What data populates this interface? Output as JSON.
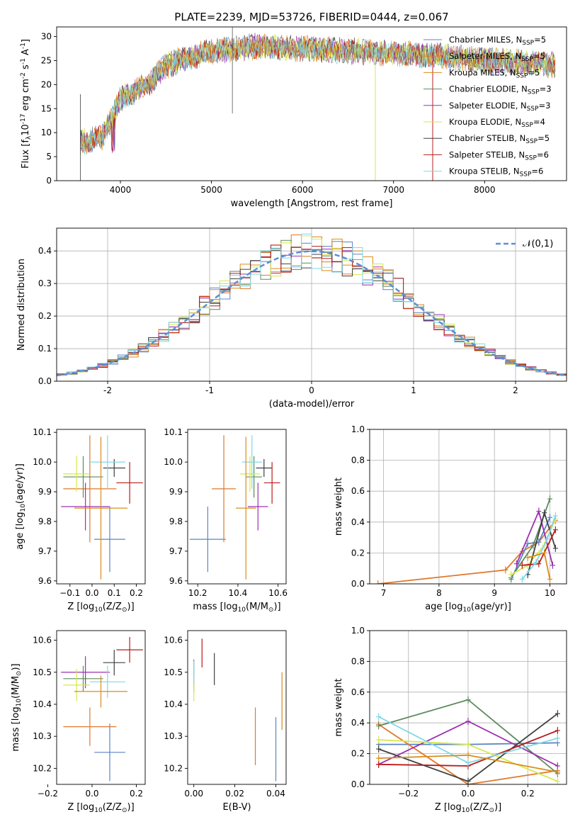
{
  "figure": {
    "title": "PLATE=2239, MJD=53726, FIBERID=0444, z=0.067"
  },
  "series": [
    {
      "name": "Chabrier MILES, N$_{SSP}$=5",
      "color": "#5b84c4"
    },
    {
      "name": "Salpeter MILES, N$_{SSP}$=5",
      "color": "#e0782b"
    },
    {
      "name": "Kroupa MILES, N$_{SSP}$=5",
      "color": "#d98c1a"
    },
    {
      "name": "Chabrier ELODIE, N$_{SSP}$=3",
      "color": "#5e8a5e"
    },
    {
      "name": "Salpeter ELODIE, N$_{SSP}$=3",
      "color": "#9b30b0"
    },
    {
      "name": "Kroupa ELODIE, N$_{SSP}$=4",
      "color": "#d6e84a"
    },
    {
      "name": "Chabrier STELIB, N$_{SSP}$=5",
      "color": "#404040"
    },
    {
      "name": "Salpeter STELIB, N$_{SSP}$=6",
      "color": "#b81c1c"
    },
    {
      "name": "Kroupa STELIB, N$_{SSP}$=6",
      "color": "#7fd8e6"
    }
  ],
  "chart_data": [
    {
      "id": "spectrum",
      "type": "line",
      "xlabel": "wavelength [Angstrom, rest frame]",
      "ylabel": "Flux [f$_\\lambda$10$^{-17}$ erg cm$^{-2}$ s$^{-1}$ A$^{-1}$]",
      "xlim": [
        3300,
        8900
      ],
      "ylim": [
        0,
        32
      ],
      "xticks": [
        4000,
        5000,
        6000,
        7000,
        8000
      ],
      "yticks": [
        0,
        5,
        10,
        15,
        20,
        25,
        30
      ],
      "legend": "top-right",
      "continuum_x": [
        3560,
        3800,
        3950,
        4000,
        4300,
        4500,
        5000,
        5500,
        6000,
        6500,
        7000,
        7500,
        8000,
        8500,
        8800
      ],
      "continuum_y": [
        8,
        9,
        15,
        17,
        20,
        24,
        27,
        28,
        27.5,
        27,
        26.5,
        26,
        25,
        24.5,
        24
      ]
    },
    {
      "id": "residuals",
      "type": "histogram",
      "xlabel": "(data-model)/error",
      "ylabel": "Normed distribution",
      "xlim": [
        -2.5,
        2.5
      ],
      "ylim": [
        0,
        0.47
      ],
      "xticks": [
        -2,
        -1,
        0,
        1,
        2
      ],
      "yticks": [
        0.0,
        0.1,
        0.2,
        0.3,
        0.4
      ],
      "grid": true,
      "legend": "top-right",
      "reference_label": "$\\mathcal{N}(0,1)$"
    },
    {
      "id": "age_vs_Z",
      "type": "errorbar",
      "xlabel": "Z [log$_{10}$($Z/Z_\\odot$)]",
      "ylabel": "age  [log$_{10}$($age/yr$)]",
      "xlim": [
        -0.16,
        0.24
      ],
      "ylim": [
        9.59,
        10.11
      ],
      "xticks": [
        -0.1,
        0.0,
        0.1,
        0.2
      ],
      "xticklabels": [
        "−0.1",
        "0.0",
        "0.1",
        "0.2"
      ],
      "yticks": [
        9.6,
        9.7,
        9.8,
        9.9,
        10.0,
        10.1
      ],
      "points": [
        {
          "s": 0,
          "x": 0.08,
          "xe": 0.07,
          "y": 9.74,
          "ye": 0.11
        },
        {
          "s": 1,
          "x": -0.01,
          "xe": 0.12,
          "y": 9.91,
          "ye": 0.18
        },
        {
          "s": 3,
          "x": -0.04,
          "xe": 0.09,
          "y": 9.95,
          "ye": 0.07
        },
        {
          "s": 4,
          "x": -0.03,
          "xe": 0.11,
          "y": 9.85,
          "ye": 0.08
        },
        {
          "s": 5,
          "x": -0.07,
          "xe": 0.06,
          "y": 9.96,
          "ye": 0.06
        },
        {
          "s": 6,
          "x": 0.1,
          "xe": 0.05,
          "y": 9.98,
          "ye": 0.03
        },
        {
          "s": 7,
          "x": 0.17,
          "xe": 0.06,
          "y": 9.93,
          "ye": 0.07
        },
        {
          "s": 8,
          "x": 0.07,
          "xe": 0.08,
          "y": 10.0,
          "ye": 0.09
        },
        {
          "s": 2,
          "x": 0.04,
          "xe": 0.12,
          "y": 9.845,
          "ye": 0.24
        }
      ]
    },
    {
      "id": "age_vs_mass",
      "type": "errorbar",
      "xlabel": "mass [log$_{10}$($M/M_\\odot$)]",
      "ylabel": "",
      "xlim": [
        10.15,
        10.64
      ],
      "ylim": [
        9.59,
        10.11
      ],
      "xticks": [
        10.2,
        10.4,
        10.6
      ],
      "xticklabels": [
        "10.2",
        "10.4",
        "10.6"
      ],
      "yticks": [
        9.6,
        9.7,
        9.8,
        9.9,
        10.0,
        10.1
      ],
      "points": [
        {
          "s": 0,
          "x": 10.25,
          "xe": 0.09,
          "y": 9.74,
          "ye": 0.11
        },
        {
          "s": 1,
          "x": 10.33,
          "xe": 0.06,
          "y": 9.91,
          "ye": 0.18
        },
        {
          "s": 3,
          "x": 10.48,
          "xe": 0.04,
          "y": 9.95,
          "ye": 0.07
        },
        {
          "s": 4,
          "x": 10.5,
          "xe": 0.05,
          "y": 9.85,
          "ye": 0.08
        },
        {
          "s": 5,
          "x": 10.46,
          "xe": 0.05,
          "y": 9.96,
          "ye": 0.06
        },
        {
          "s": 6,
          "x": 10.53,
          "xe": 0.04,
          "y": 9.98,
          "ye": 0.03
        },
        {
          "s": 7,
          "x": 10.57,
          "xe": 0.04,
          "y": 9.93,
          "ye": 0.07
        },
        {
          "s": 8,
          "x": 10.47,
          "xe": 0.05,
          "y": 10.0,
          "ye": 0.09
        },
        {
          "s": 2,
          "x": 10.44,
          "xe": 0.05,
          "y": 9.845,
          "ye": 0.24
        }
      ]
    },
    {
      "id": "weight_vs_age",
      "type": "line",
      "xlabel": "age  [log$_{10}$($age/yr$)]",
      "ylabel": "mass weight",
      "xlim": [
        6.75,
        10.3
      ],
      "ylim": [
        0,
        1
      ],
      "xticks": [
        7,
        8,
        9,
        10
      ],
      "yticks": [
        0.0,
        0.2,
        0.4,
        0.6,
        0.8,
        1.0
      ],
      "grid": true,
      "lines": [
        {
          "s": 1,
          "x": [
            6.9,
            9.2,
            9.5,
            9.8,
            10.1
          ],
          "y": [
            0.0,
            0.09,
            0.21,
            0.27,
            0.41
          ]
        },
        {
          "s": 0,
          "x": [
            9.3,
            9.6,
            9.8,
            10.0
          ],
          "y": [
            0.03,
            0.26,
            0.27,
            0.43
          ]
        },
        {
          "s": 3,
          "x": [
            9.3,
            9.7,
            10.0
          ],
          "y": [
            0.04,
            0.25,
            0.55
          ]
        },
        {
          "s": 4,
          "x": [
            9.4,
            9.8,
            10.05
          ],
          "y": [
            0.13,
            0.47,
            0.12
          ]
        },
        {
          "s": 5,
          "x": [
            9.3,
            9.6,
            9.9,
            10.1
          ],
          "y": [
            0.06,
            0.12,
            0.25,
            0.42
          ]
        },
        {
          "s": 6,
          "x": [
            9.6,
            9.9,
            10.1
          ],
          "y": [
            0.06,
            0.46,
            0.23
          ]
        },
        {
          "s": 7,
          "x": [
            9.5,
            9.8,
            10.1
          ],
          "y": [
            0.12,
            0.13,
            0.35
          ]
        },
        {
          "s": 8,
          "x": [
            9.5,
            9.75,
            9.95,
            10.1
          ],
          "y": [
            0.03,
            0.14,
            0.29,
            0.44
          ]
        },
        {
          "s": 2,
          "x": [
            9.6,
            9.9,
            10.0
          ],
          "y": [
            0.17,
            0.2,
            0.03
          ]
        }
      ]
    },
    {
      "id": "mass_vs_Z",
      "type": "errorbar",
      "xlabel": "Z [log$_{10}$($Z/Z_\\odot$)]",
      "ylabel": "mass [log$_{10}$($M/M_\\odot$)]",
      "xlim": [
        -0.16,
        0.24
      ],
      "ylim": [
        10.15,
        10.63
      ],
      "xticks": [
        -0.2,
        0.0,
        0.2
      ],
      "xticklabels": [
        "−0.2",
        "0.0",
        "0.2"
      ],
      "yticks": [
        10.2,
        10.3,
        10.4,
        10.5,
        10.6
      ],
      "points": [
        {
          "s": 0,
          "x": 0.08,
          "xe": 0.07,
          "y": 10.25,
          "ye": 0.09
        },
        {
          "s": 1,
          "x": -0.01,
          "xe": 0.12,
          "y": 10.33,
          "ye": 0.06
        },
        {
          "s": 3,
          "x": -0.04,
          "xe": 0.09,
          "y": 10.48,
          "ye": 0.04
        },
        {
          "s": 4,
          "x": -0.03,
          "xe": 0.11,
          "y": 10.5,
          "ye": 0.05
        },
        {
          "s": 5,
          "x": -0.07,
          "xe": 0.06,
          "y": 10.46,
          "ye": 0.05
        },
        {
          "s": 6,
          "x": 0.1,
          "xe": 0.05,
          "y": 10.53,
          "ye": 0.04
        },
        {
          "s": 7,
          "x": 0.17,
          "xe": 0.06,
          "y": 10.57,
          "ye": 0.04
        },
        {
          "s": 8,
          "x": 0.07,
          "xe": 0.08,
          "y": 10.47,
          "ye": 0.05
        },
        {
          "s": 2,
          "x": 0.04,
          "xe": 0.12,
          "y": 10.44,
          "ye": 0.05
        }
      ]
    },
    {
      "id": "mass_vs_ebv",
      "type": "errorbar",
      "xlabel": "E(B-V)",
      "ylabel": "",
      "xlim": [
        -0.003,
        0.045
      ],
      "ylim": [
        10.15,
        10.63
      ],
      "xticks": [
        0.0,
        0.02,
        0.04
      ],
      "xticklabels": [
        "0.00",
        "0.02",
        "0.04"
      ],
      "yticks": [
        10.2,
        10.3,
        10.4,
        10.5,
        10.6
      ],
      "points": [
        {
          "s": 0,
          "x": 0.04,
          "xe": 0,
          "y": 10.26,
          "ye": 0.1
        },
        {
          "s": 1,
          "x": 0.03,
          "xe": 0,
          "y": 10.3,
          "ye": 0.09
        },
        {
          "s": 3,
          "x": 0.0,
          "xe": 0,
          "y": 10.49,
          "ye": 0.05
        },
        {
          "s": 5,
          "x": 0.0,
          "xe": 0,
          "y": 10.45,
          "ye": 0.04
        },
        {
          "s": 6,
          "x": 0.01,
          "xe": 0,
          "y": 10.51,
          "ye": 0.05
        },
        {
          "s": 7,
          "x": 0.004,
          "xe": 0,
          "y": 10.56,
          "ye": 0.045
        },
        {
          "s": 8,
          "x": 0.0,
          "xe": 0,
          "y": 10.5,
          "ye": 0.035
        },
        {
          "s": 2,
          "x": 0.043,
          "xe": 0,
          "y": 10.41,
          "ye": 0.09
        }
      ]
    },
    {
      "id": "weight_vs_Z",
      "type": "line",
      "xlabel": "Z [log$_{10}$($Z/Z_\\odot$)]",
      "ylabel": "mass weight",
      "xlim": [
        -0.33,
        0.33
      ],
      "ylim": [
        0,
        1
      ],
      "xticks": [
        -0.2,
        0.0,
        0.2
      ],
      "xticklabels": [
        "−0.2",
        "0.0",
        "0.2"
      ],
      "yticks": [
        0.0,
        0.2,
        0.4,
        0.6,
        0.8,
        1.0
      ],
      "grid": true,
      "lines": [
        {
          "s": 0,
          "x": [
            -0.3,
            0.0,
            0.3
          ],
          "y": [
            0.26,
            0.26,
            0.27
          ]
        },
        {
          "s": 1,
          "x": [
            -0.3,
            0.0,
            0.3
          ],
          "y": [
            0.39,
            0.0,
            0.09
          ]
        },
        {
          "s": 3,
          "x": [
            -0.3,
            0.0,
            0.3
          ],
          "y": [
            0.38,
            0.55,
            0.07
          ]
        },
        {
          "s": 4,
          "x": [
            -0.3,
            0.0,
            0.3
          ],
          "y": [
            0.13,
            0.41,
            0.12
          ]
        },
        {
          "s": 5,
          "x": [
            -0.3,
            0.0,
            0.3
          ],
          "y": [
            0.29,
            0.26,
            0.02
          ]
        },
        {
          "s": 6,
          "x": [
            -0.3,
            0.0,
            0.3
          ],
          "y": [
            0.23,
            0.02,
            0.46
          ]
        },
        {
          "s": 7,
          "x": [
            -0.3,
            0.0,
            0.3
          ],
          "y": [
            0.13,
            0.12,
            0.35
          ]
        },
        {
          "s": 8,
          "x": [
            -0.3,
            0.0,
            0.3
          ],
          "y": [
            0.44,
            0.14,
            0.3
          ]
        },
        {
          "s": 2,
          "x": [
            -0.3,
            0.0,
            0.3
          ],
          "y": [
            0.17,
            0.19,
            0.08
          ]
        }
      ]
    }
  ]
}
